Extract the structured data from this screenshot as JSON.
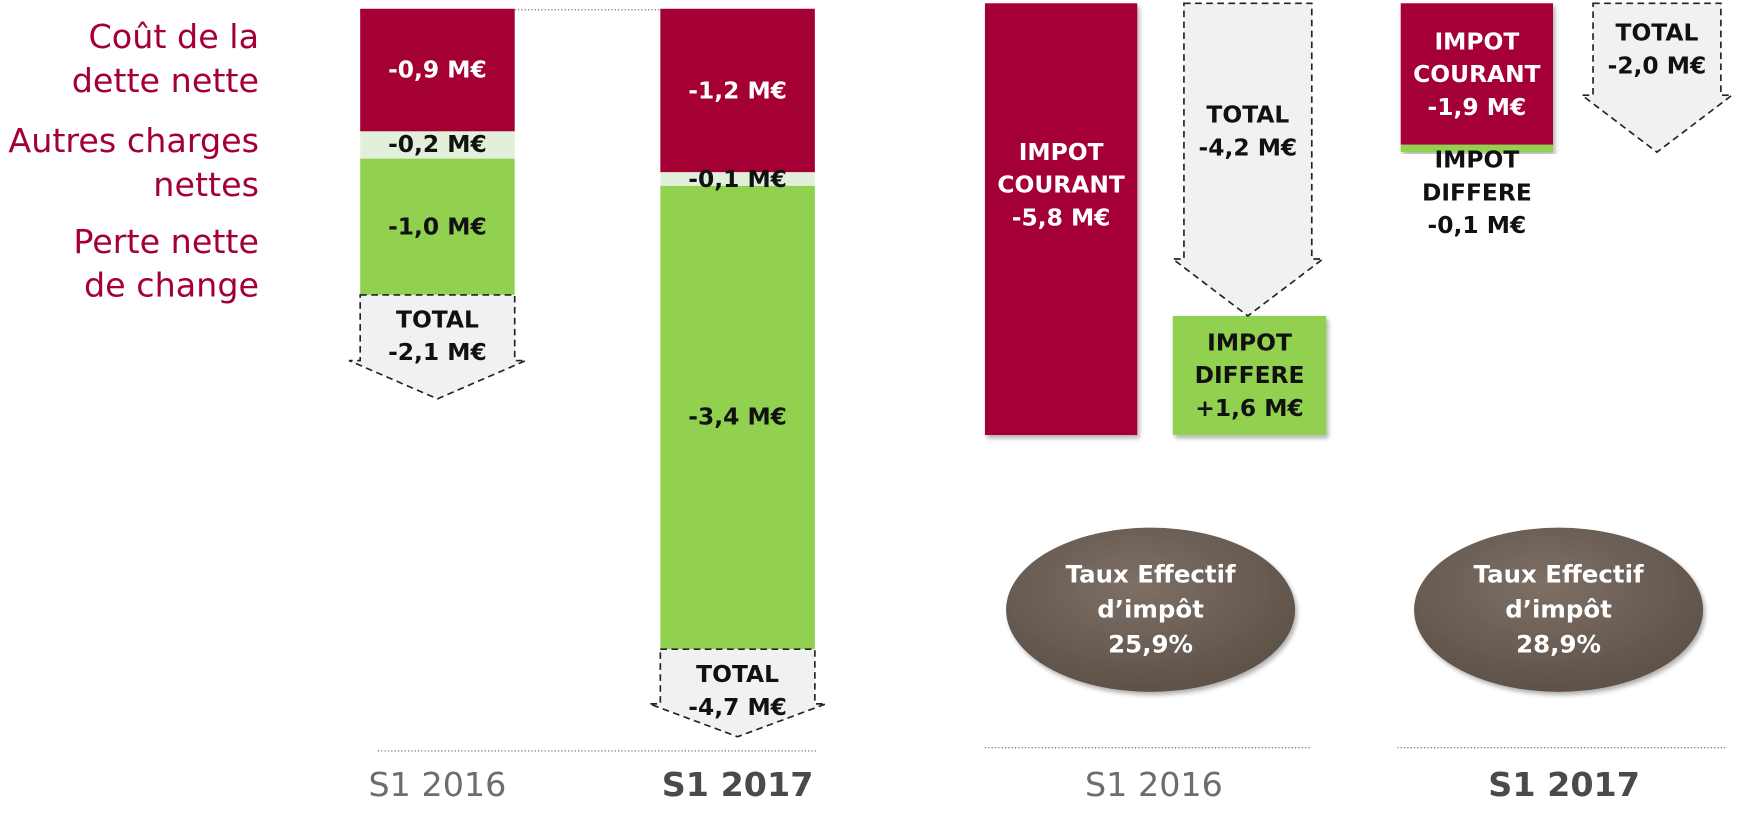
{
  "chart_data": [
    {
      "type": "stacked_bar",
      "categories": [
        "S1 2016",
        "S1 2017"
      ],
      "series": [
        {
          "name": "Coût de la dette nette",
          "color": "#a50034",
          "values": [
            -0.9,
            -1.2
          ],
          "value_labels": [
            "-0,9 M€",
            "-1,2 M€"
          ]
        },
        {
          "name": "Autres charges nettes",
          "color": "#e2efda",
          "values": [
            -0.2,
            -0.1
          ],
          "value_labels": [
            "-0,2 M€",
            "-0,1 M€"
          ]
        },
        {
          "name": "Perte nette de change",
          "color": "#92d050",
          "values": [
            -1.0,
            -3.4
          ],
          "value_labels": [
            "-1,0 M€",
            "-3,4 M€"
          ]
        }
      ],
      "total_label": "TOTAL",
      "totals": [
        -2.1,
        -4.7
      ],
      "total_value_labels": [
        "-2,1 M€",
        "-4,7 M€"
      ]
    },
    {
      "type": "tax_waterfall",
      "categories": [
        "S1 2016",
        "S1 2017"
      ],
      "series": [
        {
          "name": "IMPOT COURANT",
          "color": "#a50034",
          "values": [
            -5.8,
            -1.9
          ],
          "value_labels": [
            "-5,8 M€",
            "-1,9 M€"
          ]
        },
        {
          "name": "IMPOT DIFFERE",
          "color": "#92d050",
          "values": [
            1.6,
            -0.1
          ],
          "value_labels": [
            "+1,6 M€",
            "-0,1 M€"
          ]
        }
      ],
      "total_label": "TOTAL",
      "totals": [
        -4.2,
        -2.0
      ],
      "total_value_labels": [
        "-4,2 M€",
        "-2,0 M€"
      ],
      "rate_label": "Taux Effectif d’impôt",
      "rates": [
        25.9,
        28.9
      ],
      "rate_labels": [
        "25,9%",
        "28,9%"
      ]
    }
  ]
}
